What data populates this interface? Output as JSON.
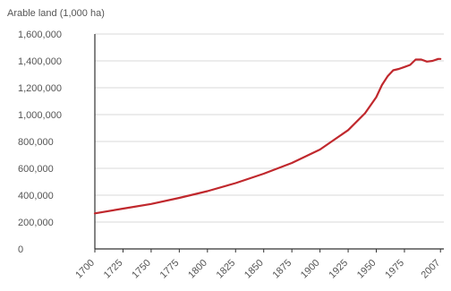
{
  "chart_data": {
    "type": "line",
    "title": "",
    "ylabel": "Arable land (1,000 ha)",
    "xlabel": "",
    "x_tick_labels": [
      "1700",
      "1725",
      "1750",
      "1775",
      "1800",
      "1825",
      "1850",
      "1875",
      "1900",
      "1925",
      "1950",
      "1975",
      "2007"
    ],
    "x_ticks": [
      1700,
      1725,
      1750,
      1775,
      1800,
      1825,
      1850,
      1875,
      1900,
      1925,
      1950,
      1975,
      2007
    ],
    "y_tick_labels": [
      "0",
      "200,000",
      "400,000",
      "600,000",
      "800,000",
      "1,000,000",
      "1,200,000",
      "1,400,000",
      "1,600,000"
    ],
    "y_ticks": [
      0,
      200000,
      400000,
      600000,
      800000,
      1000000,
      1200000,
      1400000,
      1600000
    ],
    "xlim": [
      1700,
      2010
    ],
    "ylim": [
      0,
      1600000
    ],
    "grid": "horizontal",
    "legend": "none",
    "series": [
      {
        "color": "#c0282d",
        "x": [
          1700,
          1725,
          1750,
          1775,
          1800,
          1825,
          1850,
          1875,
          1900,
          1925,
          1940,
          1950,
          1955,
          1960,
          1965,
          1970,
          1975,
          1980,
          1985,
          1990,
          1995,
          2000,
          2005,
          2007
        ],
        "y": [
          265000,
          300000,
          335000,
          380000,
          430000,
          490000,
          560000,
          640000,
          740000,
          885000,
          1010000,
          1130000,
          1220000,
          1285000,
          1330000,
          1340000,
          1355000,
          1370000,
          1410000,
          1410000,
          1395000,
          1400000,
          1415000,
          1415000
        ]
      }
    ]
  }
}
